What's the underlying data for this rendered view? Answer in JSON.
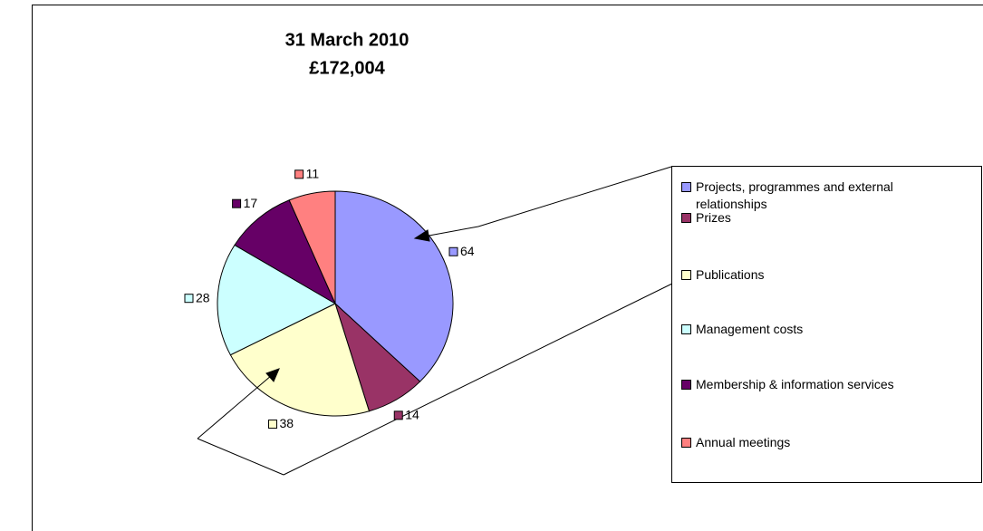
{
  "chart_data": {
    "type": "pie",
    "title": "31 March 2010",
    "subtitle": "£172,004",
    "categories": [
      "Projects, programmes and external relationships",
      "Prizes",
      "Publications",
      "Management costs",
      "Membership & information services",
      "Annual meetings"
    ],
    "values": [
      64,
      14,
      38,
      28,
      17,
      11
    ],
    "colors": [
      "#9999ff",
      "#993366",
      "#ffffcc",
      "#ccffff",
      "#660066",
      "#ff8080"
    ],
    "legend": "right"
  }
}
